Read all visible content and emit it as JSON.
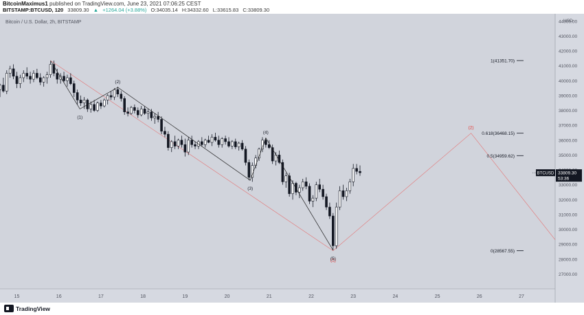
{
  "header": {
    "publish_user": "BitcoinMaximus1",
    "publish_text": "published on TradingView.com, June 23, 2021 07:06:25 CEST",
    "symbol": "BITSTAMP:BTCUSD, 120",
    "last": "33809.30",
    "change": "+1264.04 (+3.88%)",
    "open": "O:34035.14",
    "high": "H:34332.60",
    "low": "L:33615.83",
    "close": "C:33809.30"
  },
  "footer": {
    "brand": "TradingView"
  },
  "colors": {
    "background": "#d1d4dc",
    "axis_bg": "#d6d9e1",
    "bear_candle": "#131722",
    "bull_candle": "#ffffff",
    "wave_line": "#1f1f1f",
    "projection": "#e57373",
    "red_label": "#e53935"
  },
  "chart_data": {
    "type": "candlestick",
    "title": "Bitcoin / U.S. Dollar, 2h, BITSTAMP",
    "currency": "USD",
    "ylim": [
      26000,
      44500
    ],
    "y_ticks": [
      27000,
      28000,
      29000,
      30000,
      31000,
      32000,
      33000,
      34000,
      35000,
      36000,
      37000,
      38000,
      39000,
      40000,
      41000,
      42000,
      43000,
      44000
    ],
    "x_ticks": [
      {
        "label": "15",
        "day": 15
      },
      {
        "label": "16",
        "day": 16
      },
      {
        "label": "17",
        "day": 17
      },
      {
        "label": "18",
        "day": 18
      },
      {
        "label": "19",
        "day": 19
      },
      {
        "label": "20",
        "day": 20
      },
      {
        "label": "21",
        "day": 21
      },
      {
        "label": "22",
        "day": 22
      },
      {
        "label": "23",
        "day": 23
      },
      {
        "label": "24",
        "day": 24
      },
      {
        "label": "25",
        "day": 25
      },
      {
        "label": "26",
        "day": 26
      },
      {
        "label": "27",
        "day": 27
      }
    ],
    "xlim_days": [
      14.6,
      27.8
    ],
    "candles": [
      {
        "d": 14.6,
        "o": 39400,
        "h": 39800,
        "l": 38900,
        "c": 39700
      },
      {
        "d": 14.68,
        "o": 39700,
        "h": 40200,
        "l": 39200,
        "c": 39300
      },
      {
        "d": 14.76,
        "o": 39300,
        "h": 40700,
        "l": 39100,
        "c": 40500
      },
      {
        "d": 14.84,
        "o": 40500,
        "h": 41000,
        "l": 40200,
        "c": 40800
      },
      {
        "d": 14.92,
        "o": 40800,
        "h": 41100,
        "l": 40100,
        "c": 40300
      },
      {
        "d": 15.0,
        "o": 40300,
        "h": 40600,
        "l": 39500,
        "c": 39800
      },
      {
        "d": 15.08,
        "o": 39800,
        "h": 40400,
        "l": 39500,
        "c": 40200
      },
      {
        "d": 15.16,
        "o": 40200,
        "h": 40700,
        "l": 39900,
        "c": 40500
      },
      {
        "d": 15.24,
        "o": 40500,
        "h": 40900,
        "l": 40100,
        "c": 40300
      },
      {
        "d": 15.32,
        "o": 40300,
        "h": 40600,
        "l": 39800,
        "c": 40100
      },
      {
        "d": 15.4,
        "o": 40100,
        "h": 40700,
        "l": 39900,
        "c": 40500
      },
      {
        "d": 15.48,
        "o": 40500,
        "h": 40800,
        "l": 40100,
        "c": 40200
      },
      {
        "d": 15.56,
        "o": 40200,
        "h": 40500,
        "l": 39700,
        "c": 39900
      },
      {
        "d": 15.64,
        "o": 39900,
        "h": 40300,
        "l": 39600,
        "c": 40200
      },
      {
        "d": 15.72,
        "o": 40200,
        "h": 40600,
        "l": 39800,
        "c": 40400
      },
      {
        "d": 15.8,
        "o": 40400,
        "h": 41300,
        "l": 40200,
        "c": 41100
      },
      {
        "d": 15.88,
        "o": 41100,
        "h": 41350,
        "l": 40300,
        "c": 40500
      },
      {
        "d": 15.96,
        "o": 40500,
        "h": 40800,
        "l": 39800,
        "c": 40100
      },
      {
        "d": 16.04,
        "o": 40100,
        "h": 40500,
        "l": 39800,
        "c": 40300
      },
      {
        "d": 16.12,
        "o": 40300,
        "h": 40600,
        "l": 39900,
        "c": 40000
      },
      {
        "d": 16.2,
        "o": 40000,
        "h": 40400,
        "l": 39600,
        "c": 40200
      },
      {
        "d": 16.28,
        "o": 40200,
        "h": 40500,
        "l": 39700,
        "c": 39800
      },
      {
        "d": 16.36,
        "o": 39800,
        "h": 40000,
        "l": 38900,
        "c": 39200
      },
      {
        "d": 16.44,
        "o": 39200,
        "h": 39400,
        "l": 38400,
        "c": 38700
      },
      {
        "d": 16.52,
        "o": 38700,
        "h": 39000,
        "l": 38300,
        "c": 38500
      },
      {
        "d": 16.6,
        "o": 38500,
        "h": 38900,
        "l": 38100,
        "c": 38700
      },
      {
        "d": 16.68,
        "o": 38700,
        "h": 38800,
        "l": 37900,
        "c": 38100
      },
      {
        "d": 16.76,
        "o": 38100,
        "h": 38600,
        "l": 37850,
        "c": 38400
      },
      {
        "d": 16.84,
        "o": 38400,
        "h": 38700,
        "l": 37900,
        "c": 38000
      },
      {
        "d": 16.92,
        "o": 38000,
        "h": 38600,
        "l": 37900,
        "c": 38500
      },
      {
        "d": 17.0,
        "o": 38500,
        "h": 38700,
        "l": 38100,
        "c": 38300
      },
      {
        "d": 17.08,
        "o": 38300,
        "h": 38800,
        "l": 38200,
        "c": 38700
      },
      {
        "d": 17.16,
        "o": 38700,
        "h": 39100,
        "l": 38400,
        "c": 39000
      },
      {
        "d": 17.24,
        "o": 39000,
        "h": 39300,
        "l": 38700,
        "c": 38900
      },
      {
        "d": 17.32,
        "o": 38900,
        "h": 39500,
        "l": 38700,
        "c": 39400
      },
      {
        "d": 17.4,
        "o": 39400,
        "h": 39600,
        "l": 38900,
        "c": 39100
      },
      {
        "d": 17.48,
        "o": 39100,
        "h": 39300,
        "l": 38600,
        "c": 38800
      },
      {
        "d": 17.56,
        "o": 38800,
        "h": 38950,
        "l": 37700,
        "c": 37900
      },
      {
        "d": 17.64,
        "o": 37900,
        "h": 38200,
        "l": 37600,
        "c": 37800
      },
      {
        "d": 17.72,
        "o": 37800,
        "h": 38300,
        "l": 37700,
        "c": 38200
      },
      {
        "d": 17.8,
        "o": 38200,
        "h": 38400,
        "l": 37800,
        "c": 38000
      },
      {
        "d": 17.88,
        "o": 38000,
        "h": 38200,
        "l": 37500,
        "c": 37700
      },
      {
        "d": 17.96,
        "o": 37700,
        "h": 38300,
        "l": 37600,
        "c": 38100
      },
      {
        "d": 18.04,
        "o": 38100,
        "h": 38300,
        "l": 37700,
        "c": 37800
      },
      {
        "d": 18.12,
        "o": 37800,
        "h": 38100,
        "l": 37400,
        "c": 37900
      },
      {
        "d": 18.2,
        "o": 37900,
        "h": 38100,
        "l": 37300,
        "c": 37500
      },
      {
        "d": 18.28,
        "o": 37500,
        "h": 37800,
        "l": 37100,
        "c": 37600
      },
      {
        "d": 18.36,
        "o": 37600,
        "h": 37900,
        "l": 37200,
        "c": 37400
      },
      {
        "d": 18.44,
        "o": 37400,
        "h": 37600,
        "l": 36400,
        "c": 36600
      },
      {
        "d": 18.52,
        "o": 36600,
        "h": 36900,
        "l": 36200,
        "c": 36400
      },
      {
        "d": 18.6,
        "o": 36400,
        "h": 36600,
        "l": 35300,
        "c": 35500
      },
      {
        "d": 18.68,
        "o": 35500,
        "h": 36000,
        "l": 35200,
        "c": 35900
      },
      {
        "d": 18.76,
        "o": 35900,
        "h": 36300,
        "l": 35400,
        "c": 35600
      },
      {
        "d": 18.84,
        "o": 35600,
        "h": 36100,
        "l": 35400,
        "c": 36000
      },
      {
        "d": 18.92,
        "o": 36000,
        "h": 36300,
        "l": 35500,
        "c": 35700
      },
      {
        "d": 19.0,
        "o": 35700,
        "h": 36100,
        "l": 34900,
        "c": 35200
      },
      {
        "d": 19.08,
        "o": 35200,
        "h": 36200,
        "l": 35000,
        "c": 36000
      },
      {
        "d": 19.16,
        "o": 36000,
        "h": 36300,
        "l": 35500,
        "c": 35700
      },
      {
        "d": 19.24,
        "o": 35700,
        "h": 35900,
        "l": 35400,
        "c": 35600
      },
      {
        "d": 19.32,
        "o": 35600,
        "h": 36000,
        "l": 35400,
        "c": 35900
      },
      {
        "d": 19.4,
        "o": 35900,
        "h": 36200,
        "l": 35600,
        "c": 35700
      },
      {
        "d": 19.48,
        "o": 35700,
        "h": 36100,
        "l": 35500,
        "c": 36000
      },
      {
        "d": 19.56,
        "o": 36000,
        "h": 36300,
        "l": 35800,
        "c": 35850
      },
      {
        "d": 19.64,
        "o": 35850,
        "h": 36400,
        "l": 35600,
        "c": 36200
      },
      {
        "d": 19.72,
        "o": 36200,
        "h": 36500,
        "l": 35900,
        "c": 36000
      },
      {
        "d": 19.8,
        "o": 36000,
        "h": 36300,
        "l": 35500,
        "c": 35700
      },
      {
        "d": 19.88,
        "o": 35700,
        "h": 36200,
        "l": 35500,
        "c": 36100
      },
      {
        "d": 19.96,
        "o": 36100,
        "h": 36300,
        "l": 35700,
        "c": 35900
      },
      {
        "d": 20.04,
        "o": 35900,
        "h": 36200,
        "l": 35500,
        "c": 35600
      },
      {
        "d": 20.12,
        "o": 35600,
        "h": 36000,
        "l": 35400,
        "c": 35900
      },
      {
        "d": 20.2,
        "o": 35900,
        "h": 36100,
        "l": 35400,
        "c": 35550
      },
      {
        "d": 20.28,
        "o": 35550,
        "h": 35900,
        "l": 35300,
        "c": 35800
      },
      {
        "d": 20.36,
        "o": 35800,
        "h": 36000,
        "l": 35300,
        "c": 35400
      },
      {
        "d": 20.44,
        "o": 35400,
        "h": 35600,
        "l": 34300,
        "c": 34500
      },
      {
        "d": 20.52,
        "o": 34500,
        "h": 34700,
        "l": 33300,
        "c": 33500
      },
      {
        "d": 20.6,
        "o": 33500,
        "h": 34500,
        "l": 33200,
        "c": 34300
      },
      {
        "d": 20.68,
        "o": 34300,
        "h": 35000,
        "l": 34100,
        "c": 34800
      },
      {
        "d": 20.76,
        "o": 34800,
        "h": 35500,
        "l": 34600,
        "c": 35400
      },
      {
        "d": 20.84,
        "o": 35400,
        "h": 36200,
        "l": 35200,
        "c": 36000
      },
      {
        "d": 20.92,
        "o": 36000,
        "h": 36150,
        "l": 35500,
        "c": 35700
      },
      {
        "d": 21.0,
        "o": 35700,
        "h": 36000,
        "l": 35400,
        "c": 35500
      },
      {
        "d": 21.08,
        "o": 35500,
        "h": 35700,
        "l": 34400,
        "c": 34600
      },
      {
        "d": 21.16,
        "o": 34600,
        "h": 35200,
        "l": 34300,
        "c": 35000
      },
      {
        "d": 21.24,
        "o": 35000,
        "h": 35300,
        "l": 34400,
        "c": 34500
      },
      {
        "d": 21.32,
        "o": 34500,
        "h": 34700,
        "l": 33000,
        "c": 33200
      },
      {
        "d": 21.4,
        "o": 33200,
        "h": 33800,
        "l": 32800,
        "c": 33600
      },
      {
        "d": 21.48,
        "o": 33600,
        "h": 33800,
        "l": 32200,
        "c": 32400
      },
      {
        "d": 21.56,
        "o": 32400,
        "h": 33300,
        "l": 32000,
        "c": 33100
      },
      {
        "d": 21.64,
        "o": 33100,
        "h": 33200,
        "l": 32300,
        "c": 32500
      },
      {
        "d": 21.72,
        "o": 32500,
        "h": 33000,
        "l": 32100,
        "c": 32800
      },
      {
        "d": 21.8,
        "o": 32800,
        "h": 33400,
        "l": 32600,
        "c": 33200
      },
      {
        "d": 21.88,
        "o": 33200,
        "h": 33500,
        "l": 32700,
        "c": 32900
      },
      {
        "d": 21.96,
        "o": 32900,
        "h": 33100,
        "l": 31700,
        "c": 31900
      },
      {
        "d": 22.04,
        "o": 31900,
        "h": 32300,
        "l": 31500,
        "c": 32100
      },
      {
        "d": 22.12,
        "o": 32100,
        "h": 33200,
        "l": 31900,
        "c": 33000
      },
      {
        "d": 22.2,
        "o": 33000,
        "h": 33400,
        "l": 32500,
        "c": 32700
      },
      {
        "d": 22.28,
        "o": 32700,
        "h": 33000,
        "l": 32000,
        "c": 32200
      },
      {
        "d": 22.36,
        "o": 32200,
        "h": 32400,
        "l": 31300,
        "c": 31500
      },
      {
        "d": 22.44,
        "o": 31500,
        "h": 31800,
        "l": 30700,
        "c": 30900
      },
      {
        "d": 22.52,
        "o": 30900,
        "h": 31100,
        "l": 28600,
        "c": 28900
      },
      {
        "d": 22.6,
        "o": 28900,
        "h": 31800,
        "l": 28700,
        "c": 31500
      },
      {
        "d": 22.68,
        "o": 31500,
        "h": 32900,
        "l": 31300,
        "c": 32600
      },
      {
        "d": 22.76,
        "o": 32600,
        "h": 33000,
        "l": 32000,
        "c": 32200
      },
      {
        "d": 22.84,
        "o": 32200,
        "h": 32800,
        "l": 31900,
        "c": 32600
      },
      {
        "d": 22.92,
        "o": 32600,
        "h": 33400,
        "l": 32400,
        "c": 33200
      },
      {
        "d": 23.0,
        "o": 33200,
        "h": 34400,
        "l": 32900,
        "c": 34100
      },
      {
        "d": 23.08,
        "o": 34100,
        "h": 34400,
        "l": 33700,
        "c": 33900
      },
      {
        "d": 23.16,
        "o": 33900,
        "h": 34300,
        "l": 33600,
        "c": 33809.3
      }
    ],
    "wave_path": [
      {
        "d": 15.8,
        "v": 41350
      },
      {
        "d": 16.5,
        "v": 38100
      },
      {
        "d": 17.4,
        "v": 39550
      },
      {
        "d": 20.55,
        "v": 33300
      },
      {
        "d": 20.92,
        "v": 36150
      },
      {
        "d": 22.52,
        "v": 28600
      }
    ],
    "wave_labels": [
      {
        "text": "(1)",
        "d": 16.5,
        "v": 38100,
        "pos": "below"
      },
      {
        "text": "(2)",
        "d": 17.4,
        "v": 39550,
        "pos": "above"
      },
      {
        "text": "(3)",
        "d": 20.55,
        "v": 33300,
        "pos": "below"
      },
      {
        "text": "(4)",
        "d": 20.92,
        "v": 36150,
        "pos": "above"
      },
      {
        "text": "(5)",
        "d": 22.52,
        "v": 28600,
        "pos": "below"
      }
    ],
    "projection_path": [
      {
        "d": 15.8,
        "v": 41350
      },
      {
        "d": 22.52,
        "v": 28567.55
      },
      {
        "d": 25.8,
        "v": 36468.15
      },
      {
        "d": 27.8,
        "v": 29300
      }
    ],
    "projection_labels": [
      {
        "text": "(1)",
        "d": 22.52,
        "v": 28567.55,
        "pos": "below"
      },
      {
        "text": "(2)",
        "d": 25.8,
        "v": 36468.15,
        "pos": "above"
      }
    ],
    "fib_levels": [
      {
        "label": "1(41351.70)",
        "v": 41351.7
      },
      {
        "label": "0.618(36468.15)",
        "v": 36468.15
      },
      {
        "label": "0.5(34959.62)",
        "v": 34959.62
      },
      {
        "label": "0(28567.55)",
        "v": 28567.55
      }
    ],
    "price_tag": {
      "symbol": "BTCUSD",
      "price": "33809.30",
      "countdown": "53:36",
      "v": 33809.3
    }
  }
}
